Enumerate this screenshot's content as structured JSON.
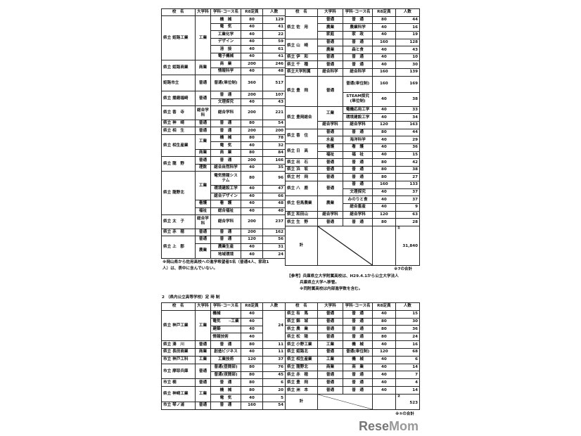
{
  "headers": [
    "校　名",
    "大学科",
    "学科･コース名",
    "R8定員",
    "人数"
  ],
  "full_time_left": [
    {
      "name": "県立 姫路工業",
      "depts": [
        {
          "dept": "工業",
          "courses": [
            [
              "機　械",
              "80",
              "129"
            ],
            [
              "電　気",
              "40",
              "41"
            ],
            [
              "工業化学",
              "40",
              "22"
            ],
            [
              "デザイン",
              "40",
              "59"
            ],
            [
              "溶　接",
              "40",
              "61"
            ],
            [
              "電子機械",
              "40",
              "41"
            ]
          ]
        }
      ]
    },
    {
      "name": "県立 姫路商業",
      "depts": [
        {
          "dept": "商業",
          "courses": [
            [
              "商　業",
              "200",
              "246"
            ],
            [
              "情報科学",
              "40",
              "48"
            ]
          ]
        }
      ]
    },
    {
      "name": "姫路市立",
      "tall": true,
      "depts": [
        {
          "dept": "普通",
          "courses": [
            [
              "普通(単位制)",
              "360",
              "517"
            ]
          ]
        }
      ]
    },
    {
      "name": "県立 播磨福崎",
      "depts": [
        {
          "dept": "普通",
          "courses": [
            [
              "普　通",
              "200",
              "107"
            ],
            [
              "文理探究",
              "40",
              "43"
            ]
          ]
        }
      ]
    },
    {
      "name": "県立 香　寺",
      "depts": [
        {
          "dept": "総合学科",
          "courses": [
            [
              "総合学科",
              "200",
              "221"
            ]
          ]
        }
      ]
    },
    {
      "name": "県立 神　崎",
      "depts": [
        {
          "dept": "普通",
          "courses": [
            [
              "普　通",
              "80",
              "54"
            ]
          ]
        }
      ]
    },
    {
      "name": "県立 相　生",
      "depts": [
        {
          "dept": "普通",
          "courses": [
            [
              "普　通",
              "200",
              "200"
            ]
          ]
        }
      ]
    },
    {
      "name": "県立 相生産業",
      "depts": [
        {
          "dept": "工業",
          "courses": [
            [
              "機　械",
              "80",
              "78"
            ],
            [
              "電　気",
              "40",
              "32"
            ]
          ]
        },
        {
          "dept": "商業",
          "courses": [
            [
              "商　業",
              "80",
              "84"
            ]
          ]
        }
      ]
    },
    {
      "name": "県立 龍　野",
      "depts": [
        {
          "dept": "普通",
          "courses": [
            [
              "普　通",
              "200",
              "166"
            ]
          ]
        },
        {
          "dept": "理数",
          "courses": [
            [
              "総合自然科学",
              "40",
              "35"
            ]
          ]
        }
      ]
    },
    {
      "name": "県立 龍野北",
      "depts": [
        {
          "dept": "工業",
          "courses": [
            [
              "電気情報システム",
              "80",
              "96"
            ],
            [
              "環境建設工学",
              "40",
              "47"
            ],
            [
              "総合デザイン",
              "40",
              "66"
            ]
          ]
        },
        {
          "dept": "看護",
          "courses": [
            [
              "看　護",
              "40",
              "48"
            ]
          ]
        },
        {
          "dept": "福祉",
          "courses": [
            [
              "総合福祉",
              "40",
              "40"
            ]
          ]
        }
      ]
    },
    {
      "name": "県立 太　子",
      "depts": [
        {
          "dept": "総合学科",
          "courses": [
            [
              "総合学科",
              "200",
              "237"
            ]
          ]
        }
      ]
    },
    {
      "name": "県立 赤　穂",
      "depts": [
        {
          "dept": "普通",
          "courses": [
            [
              "普　通",
              "200",
              "162"
            ]
          ]
        }
      ]
    },
    {
      "name": "県立 上　郡",
      "depts": [
        {
          "dept": "普通",
          "courses": [
            [
              "普　通",
              "120",
              "56"
            ]
          ]
        },
        {
          "dept": "農業",
          "courses": [
            [
              "農業生産",
              "40",
              "31"
            ],
            [
              "地域環境",
              "40",
              "24"
            ]
          ]
        }
      ]
    }
  ],
  "full_time_right": [
    {
      "name": "県立 佐　用",
      "depts": [
        {
          "dept": "普通",
          "courses": [
            [
              "普　通",
              "80",
              "44"
            ]
          ]
        },
        {
          "dept": "農業",
          "courses": [
            [
              "農業科学",
              "40",
              "16"
            ]
          ]
        },
        {
          "dept": "家庭",
          "courses": [
            [
              "家　政",
              "40",
              "19"
            ]
          ]
        }
      ]
    },
    {
      "name": "県立 山　崎",
      "depts": [
        {
          "dept": "普通",
          "courses": [
            [
              "普　通",
              "160",
              "128"
            ]
          ]
        },
        {
          "dept": "農業",
          "courses": [
            [
              "森と食",
              "40",
              "43"
            ]
          ]
        }
      ]
    },
    {
      "name": "県立 伊　和",
      "depts": [
        {
          "dept": "普通",
          "courses": [
            [
              "普　通",
              "40",
              "10"
            ]
          ]
        }
      ]
    },
    {
      "name": "県立 千　種",
      "depts": [
        {
          "dept": "普通",
          "courses": [
            [
              "普　通",
              "40",
              "30"
            ]
          ]
        }
      ]
    },
    {
      "name": "県立大学附属",
      "depts": [
        {
          "dept": "総合科学",
          "courses": [
            [
              "総合科学",
              "160",
              "139"
            ]
          ]
        }
      ]
    },
    {
      "name": "県立 豊　岡",
      "depts": [
        {
          "dept": "普通",
          "courses": [
            [
              "普通(単位制)",
              "160",
              "169",
              true
            ],
            [
              "STEAM探究(単位制)",
              "40",
              "38"
            ]
          ]
        }
      ]
    },
    {
      "name": "県立 豊岡総合",
      "depts": [
        {
          "dept": "工業",
          "courses": [
            [
              "電機応用工学",
              "40",
              "33"
            ],
            [
              "環境建設工学",
              "40",
              "34"
            ]
          ]
        },
        {
          "dept": "総合学科",
          "courses": [
            [
              "総合学科",
              "120",
              "163"
            ]
          ]
        }
      ]
    },
    {
      "name": "県立 香　住",
      "depts": [
        {
          "dept": "普通",
          "courses": [
            [
              "普　通",
              "80",
              "44"
            ]
          ]
        },
        {
          "dept": "水産",
          "courses": [
            [
              "海洋科学",
              "40",
              "29"
            ]
          ]
        }
      ]
    },
    {
      "name": "県立 日　高",
      "depts": [
        {
          "dept": "看護",
          "courses": [
            [
              "看　護",
              "40",
              "36"
            ]
          ]
        },
        {
          "dept": "福祉",
          "courses": [
            [
              "福　祉",
              "40",
              "15"
            ]
          ]
        }
      ]
    },
    {
      "name": "県立 出　石",
      "depts": [
        {
          "dept": "普通",
          "courses": [
            [
              "普　通",
              "80",
              "42"
            ]
          ]
        }
      ]
    },
    {
      "name": "県立 浜　坂",
      "depts": [
        {
          "dept": "普通",
          "courses": [
            [
              "普　通",
              "80",
              "38"
            ]
          ]
        }
      ]
    },
    {
      "name": "県立 村　岡",
      "depts": [
        {
          "dept": "普通",
          "courses": [
            [
              "普　通",
              "80",
              "27"
            ]
          ]
        }
      ]
    },
    {
      "name": "県立 八　鹿",
      "depts": [
        {
          "dept": "普通",
          "courses": [
            [
              "普　通",
              "160",
              "133"
            ],
            [
              "文理探究",
              "40",
              "37"
            ]
          ]
        }
      ]
    },
    {
      "name": "県立 但馬農業",
      "depts": [
        {
          "dept": "農業",
          "courses": [
            [
              "みのりと食",
              "40",
              "37"
            ],
            [
              "総合畜産",
              "40",
              "9"
            ]
          ]
        }
      ]
    },
    {
      "name": "県立 和田山",
      "depts": [
        {
          "dept": "総合学科",
          "courses": [
            [
              "総合学科",
              "120",
              "63"
            ]
          ]
        }
      ]
    },
    {
      "name": "県立 生　野",
      "depts": [
        {
          "dept": "普通",
          "courses": [
            [
              "普　通",
              "80",
              "28"
            ]
          ]
        }
      ]
    }
  ],
  "full_time_total": {
    "label": "計",
    "mark": "①",
    "count": "31,840"
  },
  "note_left": [
    "※岡山県から佐用高校への進学希望者5名（普通4人、家政1",
    "人）は、表中に含んでいない。"
  ],
  "note_total1": "※7の合計",
  "note_ref": [
    "【参考】兵庫県立大学附属高校は、H29.4.1から公立大学法人",
    "兵庫県立大学へ移管。",
    "※同附属高校は内部進学数を含む。"
  ],
  "part_time_title": "2 （県内公立高等学校）定 時 制",
  "part_time_left": [
    {
      "name": "県立 神戸工業",
      "group": "工業",
      "merged_count": "24",
      "depts": [
        {
          "dept": "工業",
          "courses": [
            [
              "機械",
              "40",
              ""
            ],
            [
              "電気",
              "40",
              ""
            ],
            [
              "建築",
              "40",
              ""
            ],
            [
              "情報技術",
              "40",
              ""
            ]
          ]
        }
      ]
    },
    {
      "name": "県立 湊　川",
      "depts": [
        {
          "dept": "普通",
          "courses": [
            [
              "普　通",
              "80",
              "11"
            ]
          ]
        }
      ]
    },
    {
      "name": "県立 長田商業",
      "depts": [
        {
          "dept": "商業",
          "courses": [
            [
              "創造ビジネス",
              "40",
              "11"
            ]
          ]
        }
      ]
    },
    {
      "name": "市立 神戸工科",
      "depts": [
        {
          "dept": "工業",
          "courses": [
            [
              "工業技術",
              "120",
              "37"
            ]
          ]
        }
      ]
    },
    {
      "name": "市立 摩耶兵庫",
      "depts": [
        {
          "dept": "普通",
          "courses": [
            [
              "普通(昼間部)",
              "80",
              "76"
            ],
            [
              "普通(夜間部)",
              "80",
              "45"
            ]
          ]
        }
      ]
    },
    {
      "name": "市立 楠",
      "depts": [
        {
          "dept": "普通",
          "courses": [
            [
              "普　通",
              "80",
              "6"
            ]
          ]
        }
      ]
    },
    {
      "name": "県立 神崎工業",
      "depts": [
        {
          "dept": "工業",
          "courses": [
            [
              "機　械",
              "80",
              "20"
            ],
            [
              "電　気",
              "40",
              "5"
            ]
          ]
        }
      ]
    },
    {
      "name": "市立 琴ノ浦",
      "depts": [
        {
          "dept": "普通",
          "courses": [
            [
              "普　通",
              "160",
              "54"
            ]
          ]
        }
      ]
    }
  ],
  "part_time_right": [
    {
      "name": "県立 有　馬",
      "depts": [
        {
          "dept": "普通",
          "courses": [
            [
              "普　通",
              "40",
              "15"
            ]
          ]
        }
      ]
    },
    {
      "name": "県立 錦　城",
      "depts": [
        {
          "dept": "普通",
          "courses": [
            [
              "普　通",
              "80",
              "30"
            ]
          ]
        }
      ]
    },
    {
      "name": "県立 農　業",
      "depts": [
        {
          "dept": "普通",
          "courses": [
            [
              "普　通",
              "80",
              "36"
            ]
          ]
        }
      ]
    },
    {
      "name": "県立 松　陽",
      "depts": [
        {
          "dept": "普通",
          "courses": [
            [
              "普　通",
              "80",
              "24"
            ]
          ]
        }
      ]
    },
    {
      "name": "県立 小野工業",
      "depts": [
        {
          "dept": "工業",
          "courses": [
            [
              "機　械",
              "40",
              "16"
            ]
          ]
        }
      ]
    },
    {
      "name": "県立 姫路北",
      "depts": [
        {
          "dept": "普通",
          "courses": [
            [
              "普通(単位制)",
              "120",
              "68"
            ]
          ]
        }
      ]
    },
    {
      "name": "県立 相生産業",
      "depts": [
        {
          "dept": "工業",
          "courses": [
            [
              "機　械",
              "40",
              "6"
            ]
          ]
        }
      ]
    },
    {
      "name": "県立 龍野北",
      "depts": [
        {
          "dept": "商業",
          "courses": [
            [
              "商　業",
              "40",
              "14"
            ]
          ]
        }
      ]
    },
    {
      "name": "県立 赤　穂",
      "depts": [
        {
          "dept": "普通",
          "courses": [
            [
              "普　通",
              "40",
              "7"
            ]
          ]
        }
      ]
    },
    {
      "name": "県立 豊　岡",
      "depts": [
        {
          "dept": "普通",
          "courses": [
            [
              "普　通",
              "40",
              "4"
            ]
          ]
        }
      ]
    },
    {
      "name": "県立 洲　本",
      "depts": [
        {
          "dept": "普通",
          "courses": [
            [
              "普　通",
              "40",
              "14"
            ]
          ]
        }
      ]
    }
  ],
  "part_time_total": {
    "label": "計",
    "mark": "②",
    "count": "523"
  },
  "note_total2": "※⑤の合計",
  "logo": "ReseMom"
}
